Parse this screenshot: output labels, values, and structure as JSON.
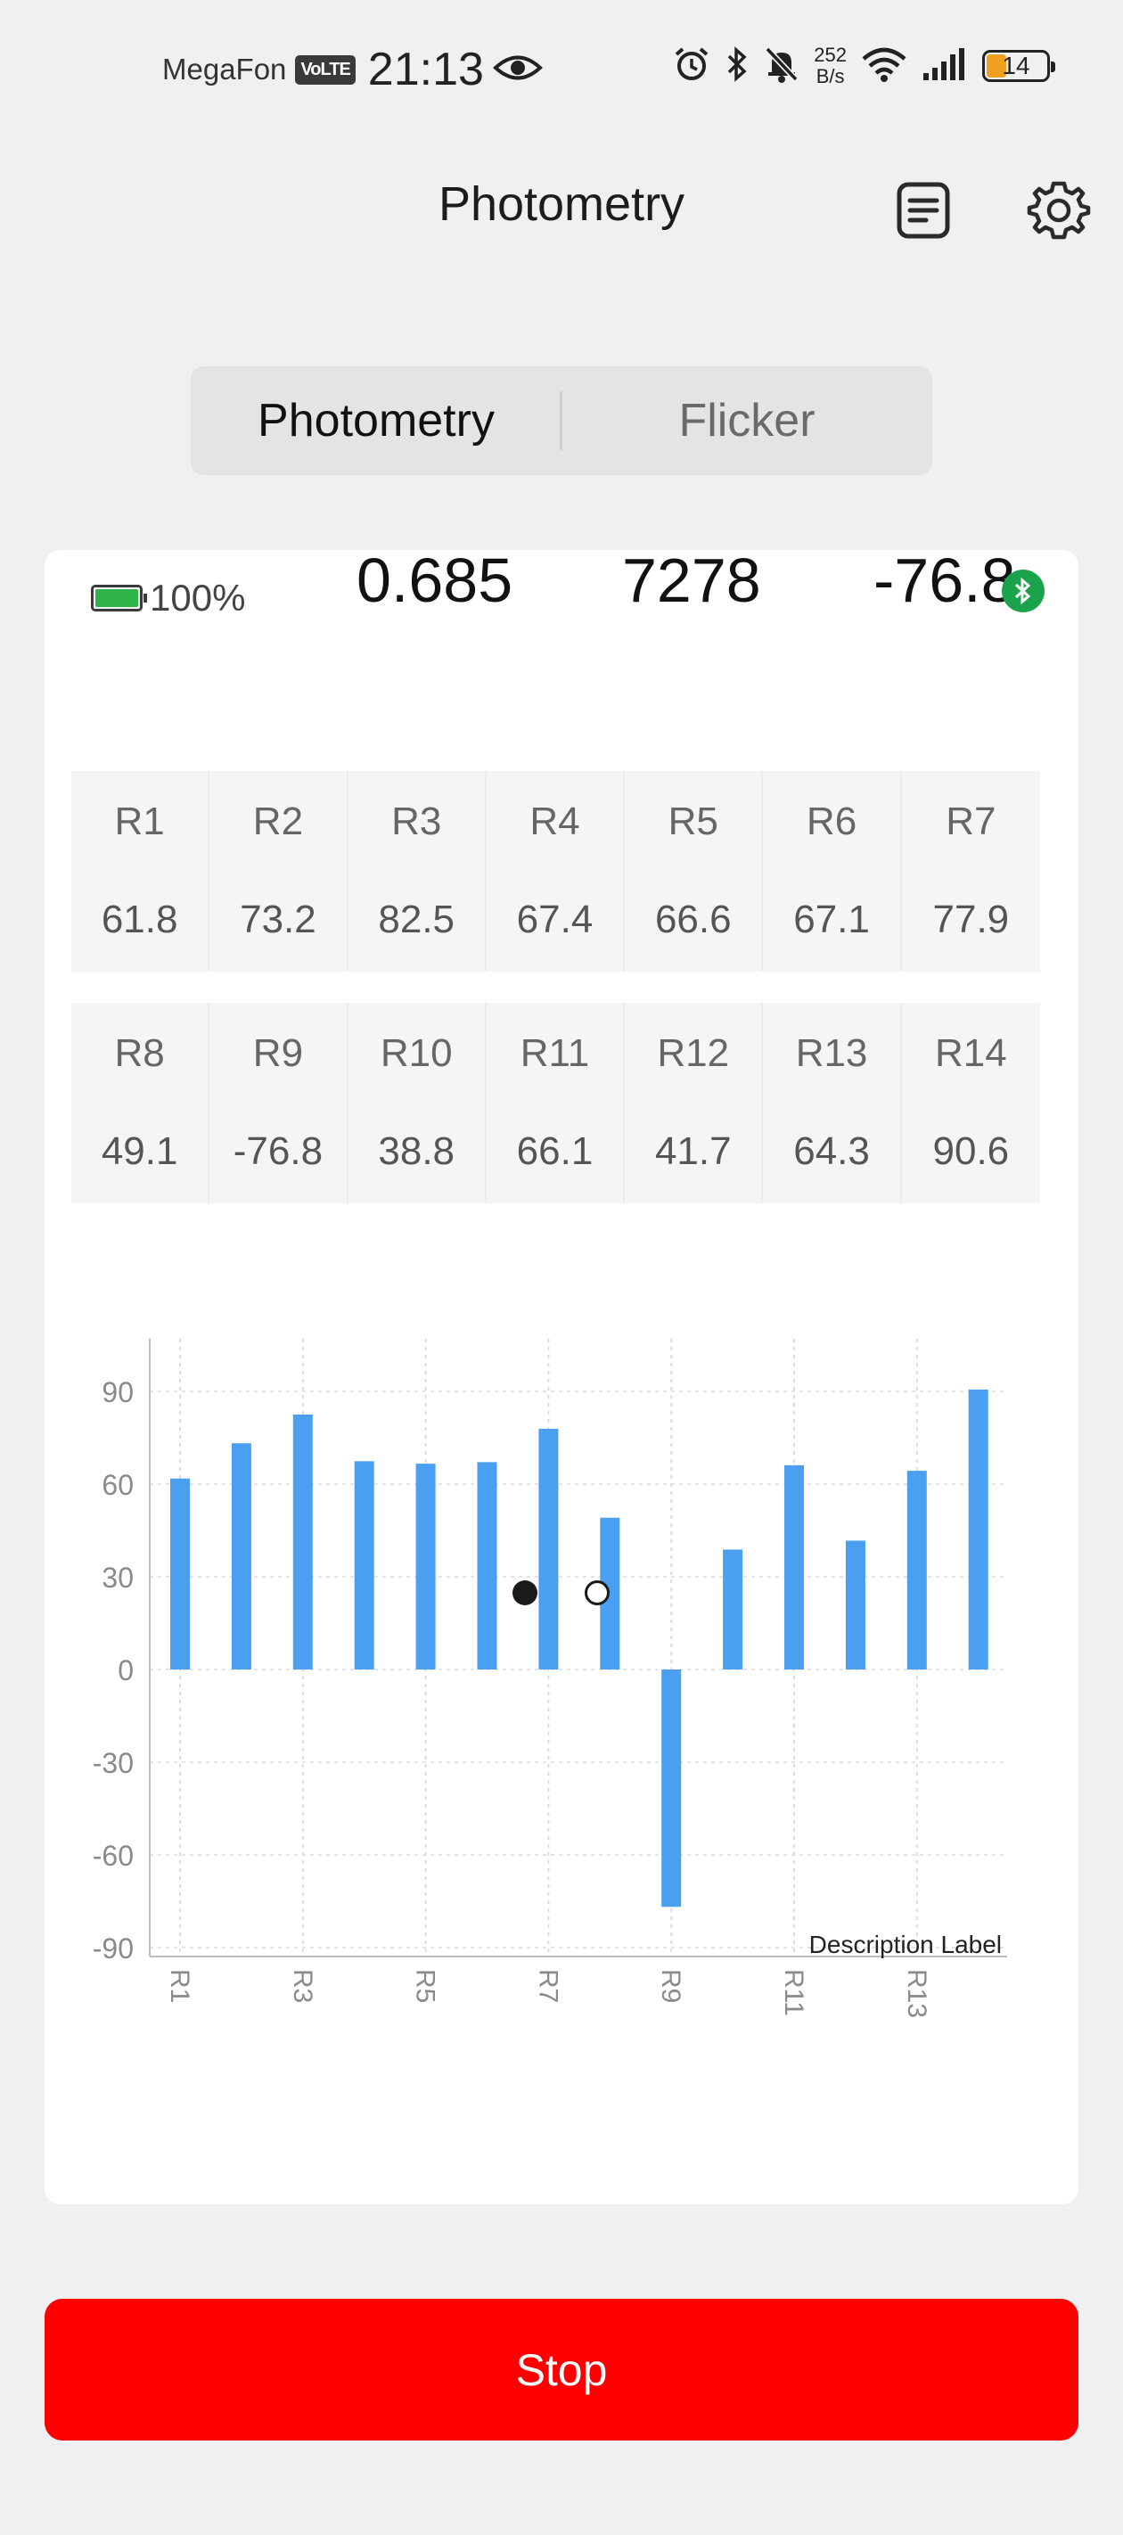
{
  "status_bar": {
    "carrier": "MegaFon",
    "volte": "VoLTE",
    "time": "21:13",
    "net_speed_value": "252",
    "net_speed_unit": "B/s",
    "battery_level": "14",
    "icons": [
      "eye-icon",
      "alarm-icon",
      "bluetooth-icon",
      "bell-muted-icon",
      "wifi-icon",
      "signal-icon",
      "battery-icon"
    ]
  },
  "header": {
    "title": "Photometry",
    "icons": [
      "report-icon",
      "settings-gear-icon"
    ]
  },
  "tabs": [
    {
      "label": "Photometry",
      "active": true
    },
    {
      "label": "Flicker",
      "active": false
    }
  ],
  "card": {
    "device_battery": "100%",
    "metrics": [
      "0.685",
      "7278",
      "-76.8"
    ],
    "row1": [
      {
        "label": "R1",
        "value": "61.8"
      },
      {
        "label": "R2",
        "value": "73.2"
      },
      {
        "label": "R3",
        "value": "82.5"
      },
      {
        "label": "R4",
        "value": "67.4"
      },
      {
        "label": "R5",
        "value": "66.6"
      },
      {
        "label": "R6",
        "value": "67.1"
      },
      {
        "label": "R7",
        "value": "77.9"
      }
    ],
    "row2": [
      {
        "label": "R8",
        "value": "49.1"
      },
      {
        "label": "R9",
        "value": "-76.8"
      },
      {
        "label": "R10",
        "value": "38.8"
      },
      {
        "label": "R11",
        "value": "66.1"
      },
      {
        "label": "R12",
        "value": "41.7"
      },
      {
        "label": "R13",
        "value": "64.3"
      },
      {
        "label": "R14",
        "value": "90.6"
      }
    ]
  },
  "chart_data": {
    "type": "bar",
    "categories": [
      "R1",
      "R2",
      "R3",
      "R4",
      "R5",
      "R6",
      "R7",
      "R8",
      "R9",
      "R10",
      "R11",
      "R12",
      "R13",
      "R14"
    ],
    "values": [
      61.8,
      73.2,
      82.5,
      67.4,
      66.6,
      67.1,
      77.9,
      49.1,
      -76.8,
      38.8,
      66.1,
      41.7,
      64.3,
      90.6
    ],
    "x_tick_labels": [
      "R1",
      "R3",
      "R5",
      "R7",
      "R9",
      "R11",
      "R13"
    ],
    "y_ticks": [
      90,
      60,
      30,
      0,
      -30,
      -60,
      -90
    ],
    "ylim": [
      -93,
      107
    ],
    "description": "Description Label",
    "bar_color": "#4a9ff0",
    "grid": true
  },
  "pager": {
    "pages": 2,
    "active": 1
  },
  "stop_button": {
    "label": "Stop",
    "color": "#ff0000"
  }
}
